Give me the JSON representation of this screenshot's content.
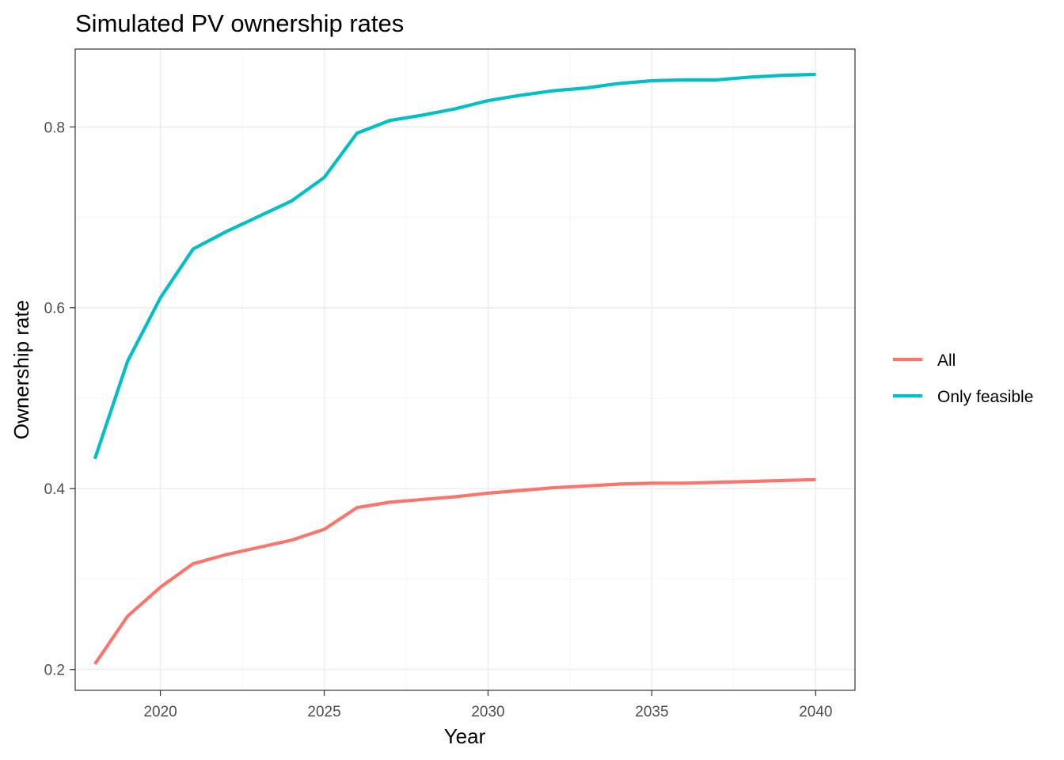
{
  "chart_data": {
    "type": "line",
    "title": "Simulated PV ownership rates",
    "xlabel": "Year",
    "ylabel": "Ownership rate",
    "xlim": [
      2017.4,
      2041.2
    ],
    "ylim": [
      0.177,
      0.886
    ],
    "x_ticks": [
      2020,
      2025,
      2030,
      2035,
      2040
    ],
    "x_minor_ticks": [
      2017.5,
      2022.5,
      2027.5,
      2032.5,
      2037.5
    ],
    "y_ticks": [
      0.2,
      0.4,
      0.6,
      0.8
    ],
    "y_minor_ticks": [
      0.3,
      0.5,
      0.7
    ],
    "x_tick_labels": [
      "2020",
      "2025",
      "2030",
      "2035",
      "2040"
    ],
    "y_tick_labels": [
      "0.2",
      "0.4",
      "0.6",
      "0.8"
    ],
    "grid": true,
    "legend_position": "right",
    "x": [
      2018,
      2019,
      2020,
      2021,
      2022,
      2023,
      2024,
      2025,
      2026,
      2027,
      2028,
      2029,
      2030,
      2031,
      2032,
      2033,
      2034,
      2035,
      2036,
      2037,
      2038,
      2039,
      2040
    ],
    "series": [
      {
        "name": "All",
        "color": "#F8766D",
        "values": [
          0.206,
          0.259,
          0.291,
          0.317,
          0.327,
          0.335,
          0.343,
          0.355,
          0.379,
          0.385,
          0.388,
          0.391,
          0.395,
          0.398,
          0.401,
          0.403,
          0.405,
          0.406,
          0.406,
          0.407,
          0.408,
          0.409,
          0.41
        ]
      },
      {
        "name": "Only feasible",
        "color": "#00BFC4",
        "values": [
          0.433,
          0.541,
          0.611,
          0.665,
          0.684,
          0.701,
          0.718,
          0.744,
          0.793,
          0.807,
          0.813,
          0.82,
          0.829,
          0.835,
          0.84,
          0.843,
          0.848,
          0.851,
          0.852,
          0.852,
          0.855,
          0.857,
          0.858
        ]
      }
    ],
    "colors": {
      "panel_border": "#333333",
      "grid_major": "#ebebeb",
      "grid_minor": "#f5f5f5",
      "tick_text": "#4d4d4d",
      "tick_mark": "#333333"
    }
  }
}
